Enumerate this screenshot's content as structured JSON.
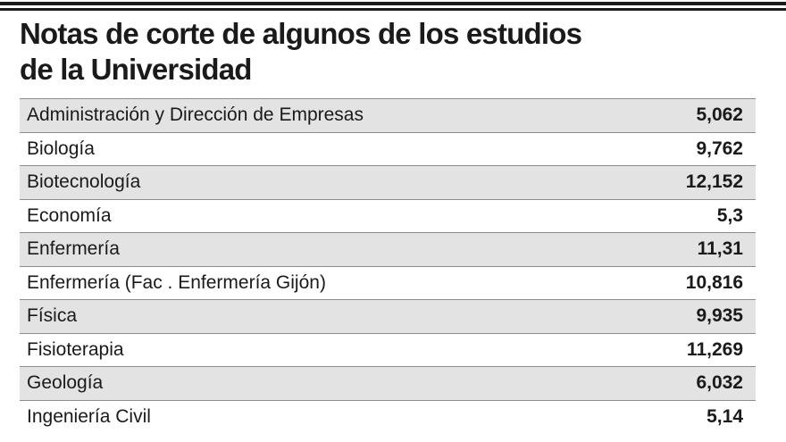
{
  "header": {
    "title_lines": [
      "Notas de corte de algunos de los estudios",
      "de la Universidad"
    ]
  },
  "table": {
    "rows": [
      [
        "Administración y Dirección de Empresas",
        "5,062"
      ],
      [
        "Biología",
        "9,762"
      ],
      [
        "Biotecnología",
        "12,152"
      ],
      [
        "Economía",
        "5,3"
      ],
      [
        "Enfermería",
        "11,31"
      ],
      [
        "Enfermería (Fac . Enfermería Gijón)",
        "10,816"
      ],
      [
        "Física",
        "9,935"
      ],
      [
        "Fisioterapia",
        "11,269"
      ],
      [
        "Geología",
        "6,032"
      ],
      [
        "Ingeniería Civil",
        "5,14"
      ]
    ]
  }
}
